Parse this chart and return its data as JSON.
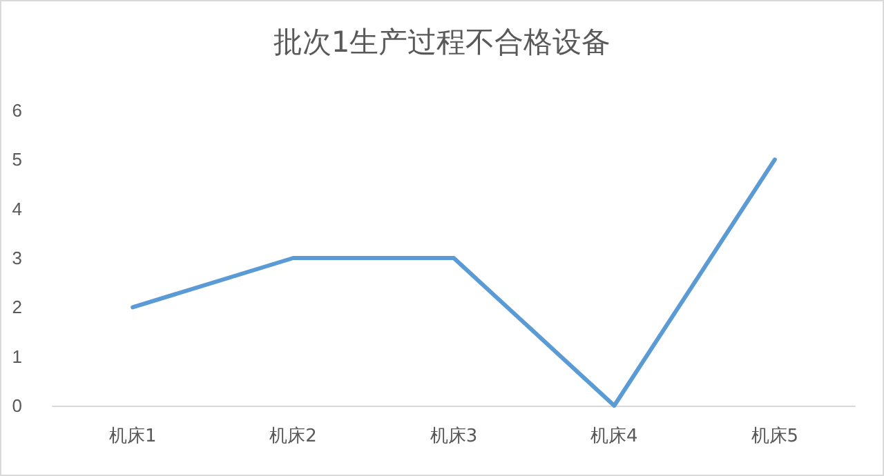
{
  "chart_data": {
    "type": "line",
    "title": "批次1生产过程不合格设备",
    "categories": [
      "机床1",
      "机床2",
      "机床3",
      "机床4",
      "机床5"
    ],
    "series": [
      {
        "color": "#5b9bd5",
        "values": [
          2,
          3,
          3,
          0,
          5
        ]
      }
    ],
    "ylim": [
      0,
      6
    ],
    "yticks": [
      0,
      1,
      2,
      3,
      4,
      5,
      6
    ],
    "grid": false,
    "marker": "none",
    "line_style": "solid"
  }
}
